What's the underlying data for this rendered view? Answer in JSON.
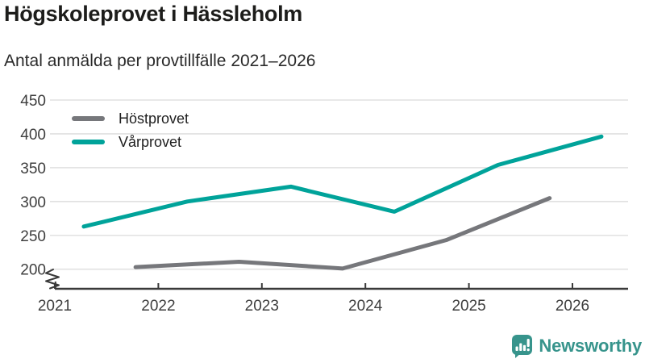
{
  "header": {
    "title": "Högskoleprovet i Hässleholm",
    "subtitle": "Antal anmälda per provtillfälle 2021–2026"
  },
  "legend": [
    {
      "label": "Höstprovet",
      "color": "#76777b"
    },
    {
      "label": "Vårprovet",
      "color": "#00a39a"
    }
  ],
  "chart_data": {
    "type": "line",
    "title": "Högskoleprovet i Hässleholm",
    "subtitle": "Antal anmälda per provtillfälle 2021–2026",
    "xlabel": "",
    "ylabel": "",
    "x_ticks": [
      2021,
      2022,
      2023,
      2024,
      2025,
      2026
    ],
    "y_ticks": [
      200,
      250,
      300,
      350,
      400,
      450
    ],
    "ylim": [
      200,
      450
    ],
    "axis_break": true,
    "grid": "horizontal",
    "legend_position": "top-left",
    "series": [
      {
        "name": "Höstprovet",
        "color": "#76777b",
        "x": [
          2021,
          2022,
          2023,
          2024,
          2025
        ],
        "x_offset": 0.78,
        "values": [
          203,
          211,
          201,
          243,
          305
        ]
      },
      {
        "name": "Vårprovet",
        "color": "#00a39a",
        "x": [
          2021,
          2022,
          2023,
          2024,
          2025,
          2026
        ],
        "x_offset": 0.28,
        "values": [
          263,
          300,
          322,
          285,
          354,
          396
        ]
      }
    ],
    "colors": {
      "gridline": "#e1e1e1",
      "axis": "#3a3a3a",
      "tick_label": "#3e3e3e"
    }
  },
  "footer": {
    "brand": "Newsworthy",
    "brand_color": "#37948c",
    "logo_icon": "bar-chart-speech-bubble-icon"
  }
}
